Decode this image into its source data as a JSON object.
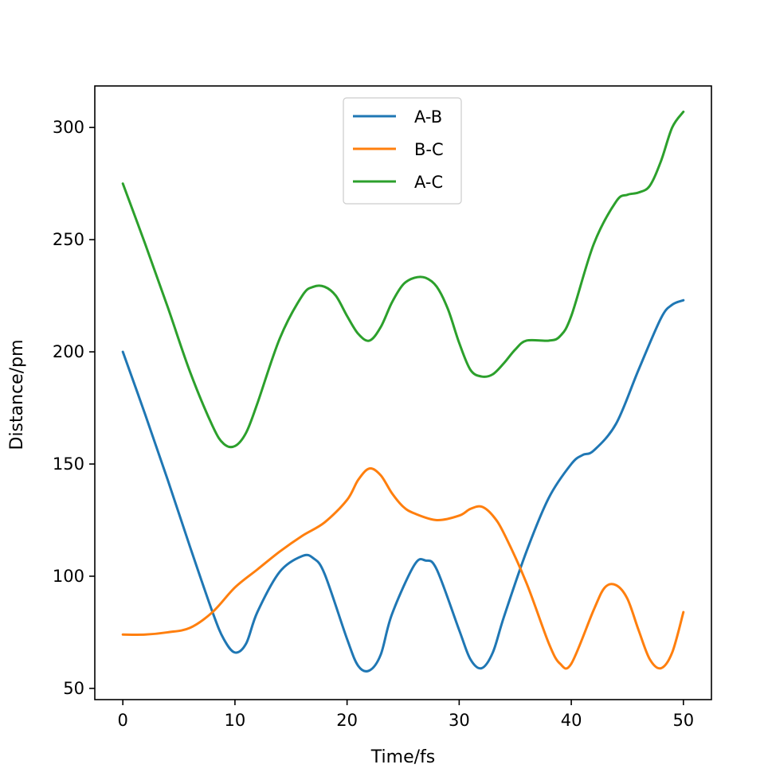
{
  "chart_data": {
    "type": "line",
    "title": "",
    "xlabel": "Time/fs",
    "ylabel": "Distance/pm",
    "xlim": [
      -2.5,
      52.5
    ],
    "ylim": [
      45,
      318.5
    ],
    "xticks": [
      0,
      10,
      20,
      30,
      40,
      50
    ],
    "yticks": [
      50,
      100,
      150,
      200,
      250,
      300
    ],
    "grid": false,
    "legend_position": "upper center",
    "series": [
      {
        "name": "A-B",
        "color": "#1f77b4",
        "x": [
          0,
          2,
          4,
          6,
          8,
          9,
          10,
          11,
          12,
          14,
          16,
          17,
          18,
          20,
          21,
          22,
          23,
          24,
          26,
          27,
          28,
          30,
          31,
          32,
          33,
          34,
          36,
          38,
          40,
          41,
          42,
          44,
          46,
          48,
          49,
          50
        ],
        "y": [
          200,
          172,
          143,
          113,
          84,
          72,
          66,
          70,
          84,
          102,
          109,
          108,
          101,
          72,
          60,
          58,
          65,
          83,
          105,
          107,
          103,
          76,
          63,
          59,
          66,
          82,
          111,
          135,
          150,
          154,
          156,
          168,
          192,
          215,
          221,
          223
        ]
      },
      {
        "name": "B-C",
        "color": "#ff7f0e",
        "x": [
          0,
          2,
          4,
          6,
          8,
          10,
          12,
          14,
          16,
          18,
          20,
          21,
          22,
          23,
          24,
          25,
          26,
          28,
          30,
          31,
          32,
          33,
          34,
          36,
          38,
          39,
          40,
          42,
          43,
          44,
          45,
          46,
          47,
          48,
          49,
          50
        ],
        "y": [
          74,
          74,
          75,
          77,
          84,
          95,
          103,
          111,
          118,
          124,
          134,
          143,
          148,
          145,
          137,
          131,
          128,
          125,
          127,
          130,
          131,
          127,
          119,
          97,
          70,
          61,
          61,
          85,
          95,
          96,
          90,
          76,
          63,
          59,
          66,
          84
        ]
      },
      {
        "name": "A-C",
        "color": "#2ca02c",
        "x": [
          0,
          2,
          4,
          6,
          8,
          9,
          10,
          11,
          12,
          14,
          16,
          17,
          18,
          19,
          20,
          21,
          22,
          23,
          24,
          25,
          26,
          27,
          28,
          29,
          30,
          31,
          32,
          33,
          34,
          35,
          36,
          38,
          39,
          40,
          42,
          44,
          45,
          46,
          47,
          48,
          49,
          50
        ],
        "y": [
          275,
          248,
          220,
          191,
          167,
          159,
          158,
          164,
          177,
          206,
          225,
          229,
          229,
          225,
          216,
          208,
          205,
          211,
          222,
          230,
          233,
          233,
          229,
          219,
          204,
          192,
          189,
          190,
          195,
          201,
          205,
          205,
          207,
          216,
          248,
          267,
          270,
          271,
          274,
          285,
          300,
          307
        ]
      }
    ]
  }
}
